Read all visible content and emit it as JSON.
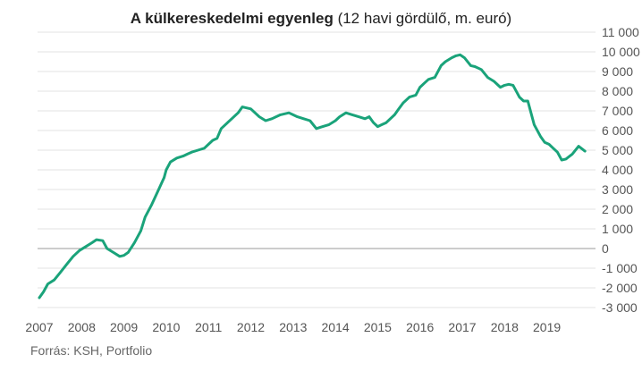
{
  "chart_data": {
    "type": "line",
    "title_bold": "A külkereskedelmi egyenleg",
    "title_rest": " (12 havi gördülő, m. euró)",
    "source": "Forrás: KSH, Portfolio",
    "ylim": [
      -3000,
      11000
    ],
    "xlim": [
      2007,
      2020
    ],
    "y_ticks": [
      11000,
      10000,
      9000,
      8000,
      7000,
      6000,
      5000,
      4000,
      3000,
      2000,
      1000,
      0,
      -1000,
      -2000,
      -3000
    ],
    "y_tick_labels": [
      "11 000",
      "10 000",
      "9 000",
      "8 000",
      "7 000",
      "6 000",
      "5 000",
      "4 000",
      "3 000",
      "2 000",
      "1 000",
      "0",
      "-1 000",
      "-2 000",
      "-3 000"
    ],
    "x_ticks": [
      2007,
      2008,
      2009,
      2010,
      2011,
      2012,
      2013,
      2014,
      2015,
      2016,
      2017,
      2018,
      2019
    ],
    "x_tick_labels": [
      "2007",
      "2008",
      "2009",
      "2010",
      "2011",
      "2012",
      "2013",
      "2014",
      "2015",
      "2016",
      "2017",
      "2018",
      "2019"
    ],
    "grid": true,
    "colors": {
      "line": "#1aa37a",
      "grid": "#e3e3e3",
      "zero": "#999999"
    },
    "series": [
      {
        "x": [
          2007.0,
          2007.1,
          2007.2,
          2007.35,
          2007.5,
          2007.65,
          2007.8,
          2007.95,
          2008.1,
          2008.25,
          2008.35,
          2008.5,
          2008.6,
          2008.75,
          2008.9,
          2009.0,
          2009.1,
          2009.25,
          2009.4,
          2009.5,
          2009.65,
          2009.8,
          2009.95,
          2010.0,
          2010.1,
          2010.25,
          2010.4,
          2010.5,
          2010.6,
          2010.75,
          2010.9,
          2011.0,
          2011.1,
          2011.2,
          2011.3,
          2011.45,
          2011.55,
          2011.7,
          2011.8,
          2012.0,
          2012.2,
          2012.35,
          2012.5,
          2012.7,
          2012.9,
          2013.0,
          2013.1,
          2013.25,
          2013.4,
          2013.55,
          2013.7,
          2013.85,
          2014.0,
          2014.1,
          2014.25,
          2014.4,
          2014.55,
          2014.7,
          2014.8,
          2014.9,
          2015.0,
          2015.1,
          2015.2,
          2015.4,
          2015.5,
          2015.6,
          2015.75,
          2015.9,
          2016.0,
          2016.1,
          2016.2,
          2016.35,
          2016.5,
          2016.6,
          2016.75,
          2016.85,
          2016.95,
          2017.05,
          2017.2,
          2017.3,
          2017.45,
          2017.6,
          2017.75,
          2017.9,
          2018.0,
          2018.1,
          2018.2,
          2018.35,
          2018.45,
          2018.55,
          2018.7,
          2018.85,
          2018.95,
          2019.05,
          2019.15,
          2019.25,
          2019.35,
          2019.45,
          2019.6,
          2019.75,
          2019.9
        ],
        "values": [
          -2500,
          -2200,
          -1800,
          -1600,
          -1200,
          -800,
          -400,
          -100,
          100,
          300,
          450,
          400,
          0,
          -200,
          -400,
          -350,
          -200,
          300,
          900,
          1600,
          2200,
          2900,
          3600,
          4000,
          4400,
          4600,
          4700,
          4800,
          4900,
          5000,
          5100,
          5300,
          5500,
          5600,
          6100,
          6400,
          6600,
          6900,
          7200,
          7100,
          6700,
          6500,
          6600,
          6800,
          6900,
          6800,
          6700,
          6600,
          6500,
          6100,
          6200,
          6300,
          6500,
          6700,
          6900,
          6800,
          6700,
          6600,
          6700,
          6400,
          6200,
          6300,
          6400,
          6800,
          7100,
          7400,
          7700,
          7800,
          8200,
          8400,
          8600,
          8700,
          9300,
          9500,
          9700,
          9800,
          9850,
          9700,
          9300,
          9250,
          9100,
          8700,
          8500,
          8200,
          8300,
          8350,
          8300,
          7700,
          7500,
          7500,
          6300,
          5700,
          5400,
          5300,
          5100,
          4900,
          4500,
          4550,
          4800,
          5200,
          4950
        ]
      }
    ]
  }
}
